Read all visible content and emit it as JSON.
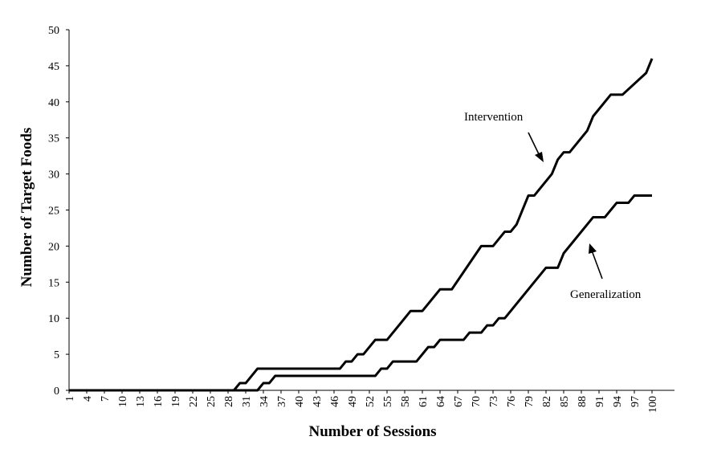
{
  "chart_data": {
    "type": "line",
    "xlabel": "Number of Sessions",
    "ylabel": "Number of Target Foods",
    "xlim": [
      1,
      100
    ],
    "ylim": [
      0,
      50
    ],
    "yticks": [
      0,
      5,
      10,
      15,
      20,
      25,
      30,
      35,
      40,
      45,
      50
    ],
    "xticks": [
      1,
      4,
      7,
      10,
      13,
      16,
      19,
      22,
      25,
      28,
      31,
      34,
      37,
      40,
      43,
      46,
      49,
      52,
      55,
      58,
      61,
      64,
      67,
      70,
      73,
      76,
      79,
      82,
      85,
      88,
      91,
      94,
      97,
      100
    ],
    "grid": false,
    "series": [
      {
        "name": "Intervention",
        "points": [
          [
            1,
            0
          ],
          [
            29,
            0
          ],
          [
            30,
            1
          ],
          [
            31,
            1
          ],
          [
            33,
            3
          ],
          [
            47,
            3
          ],
          [
            48,
            4
          ],
          [
            49,
            4
          ],
          [
            50,
            5
          ],
          [
            51,
            5
          ],
          [
            53,
            7
          ],
          [
            55,
            7
          ],
          [
            59,
            11
          ],
          [
            61,
            11
          ],
          [
            64,
            14
          ],
          [
            66,
            14
          ],
          [
            71,
            20
          ],
          [
            73,
            20
          ],
          [
            75,
            22
          ],
          [
            76,
            22
          ],
          [
            77,
            23
          ],
          [
            79,
            27
          ],
          [
            80,
            27
          ],
          [
            83,
            30
          ],
          [
            84,
            32
          ],
          [
            85,
            33
          ],
          [
            86,
            33
          ],
          [
            89,
            36
          ],
          [
            90,
            38
          ],
          [
            93,
            41
          ],
          [
            95,
            41
          ],
          [
            99,
            44
          ],
          [
            100,
            46
          ]
        ]
      },
      {
        "name": "Generalization",
        "points": [
          [
            1,
            0
          ],
          [
            33,
            0
          ],
          [
            34,
            1
          ],
          [
            35,
            1
          ],
          [
            36,
            2
          ],
          [
            53,
            2
          ],
          [
            54,
            3
          ],
          [
            55,
            3
          ],
          [
            56,
            4
          ],
          [
            60,
            4
          ],
          [
            62,
            6
          ],
          [
            63,
            6
          ],
          [
            64,
            7
          ],
          [
            68,
            7
          ],
          [
            69,
            8
          ],
          [
            71,
            8
          ],
          [
            72,
            9
          ],
          [
            73,
            9
          ],
          [
            74,
            10
          ],
          [
            75,
            10
          ],
          [
            82,
            17
          ],
          [
            84,
            17
          ],
          [
            85,
            19
          ],
          [
            90,
            24
          ],
          [
            92,
            24
          ],
          [
            94,
            26
          ],
          [
            96,
            26
          ],
          [
            97,
            27
          ],
          [
            100,
            27
          ]
        ]
      }
    ],
    "annotations": [
      {
        "text": "Intervention",
        "series": "Intervention"
      },
      {
        "text": "Generalization",
        "series": "Generalization"
      }
    ]
  }
}
